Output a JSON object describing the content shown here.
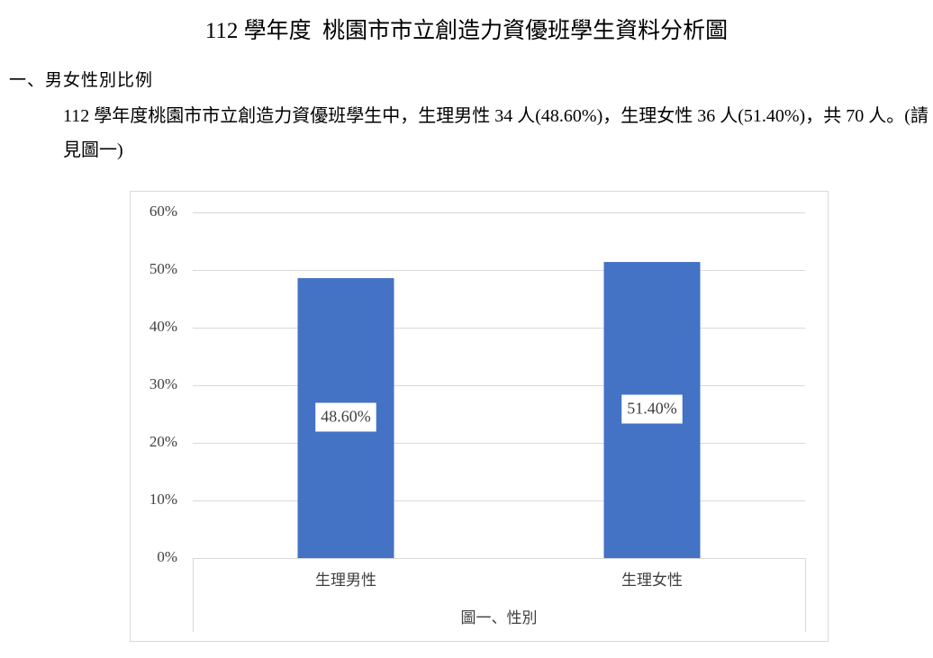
{
  "title": "112 學年度  桃園市市立創造力資優班學生資料分析圖",
  "section_heading": "一、男女性別比例",
  "paragraph": "112 學年度桃園市市立創造力資優班學生中，生理男性 34 人(48.60%)，生理女性 36 人(51.40%)，共 70 人。(請見圖一)",
  "chart_data": {
    "type": "bar",
    "x_label": "圖一、性別",
    "categories": [
      "生理男性",
      "生理女性"
    ],
    "values": [
      48.6,
      51.4
    ],
    "value_labels": [
      "48.60%",
      "51.40%"
    ],
    "color": "#4472c4",
    "ylim": [
      0,
      60
    ],
    "yticks": [
      {
        "value": 0,
        "label": "0%"
      },
      {
        "value": 10,
        "label": "10%"
      },
      {
        "value": 20,
        "label": "20%"
      },
      {
        "value": 30,
        "label": "30%"
      },
      {
        "value": 40,
        "label": "40%"
      },
      {
        "value": 50,
        "label": "50%"
      },
      {
        "value": 60,
        "label": "60%"
      }
    ],
    "grid": true
  }
}
